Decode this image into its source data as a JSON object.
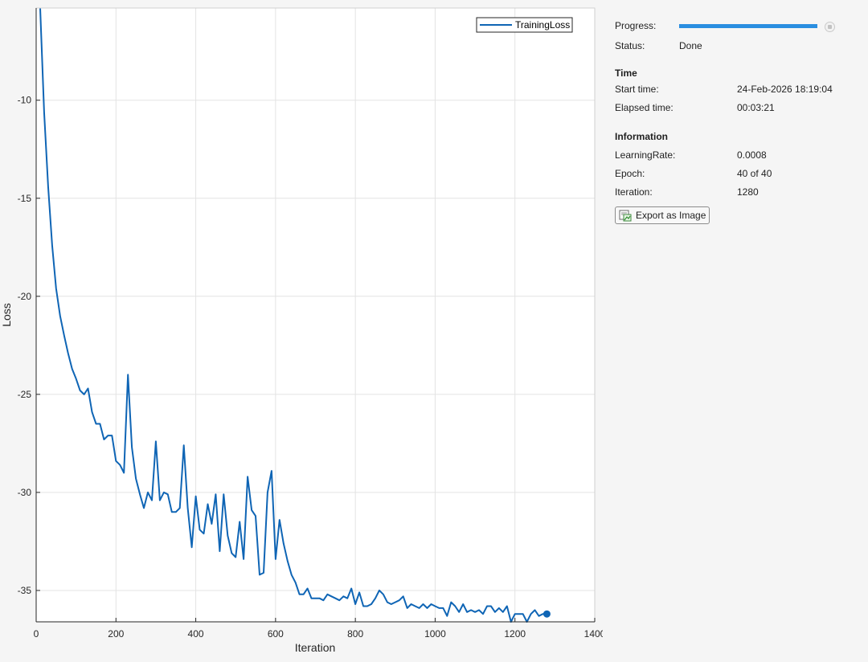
{
  "colors": {
    "accent": "#2a8ee0",
    "line": "#0f65b5",
    "grid": "#e3e3e3"
  },
  "chart_data": {
    "type": "line",
    "xlabel": "Iteration",
    "ylabel": "Loss",
    "xlim": [
      0,
      1400
    ],
    "ylim": [
      -36.6,
      -5.3
    ],
    "xticks": [
      0,
      200,
      400,
      600,
      800,
      1000,
      1200,
      1400
    ],
    "yticks": [
      -10,
      -15,
      -20,
      -25,
      -30,
      -35
    ],
    "grid": true,
    "legend_position": "top-right",
    "series": [
      {
        "name": "TrainingLoss",
        "marker_last": true,
        "x": [
          10,
          20,
          30,
          40,
          50,
          60,
          70,
          80,
          90,
          100,
          110,
          120,
          130,
          140,
          150,
          160,
          170,
          180,
          190,
          200,
          210,
          220,
          230,
          240,
          250,
          260,
          270,
          280,
          290,
          300,
          310,
          320,
          330,
          340,
          350,
          360,
          370,
          380,
          390,
          400,
          410,
          420,
          430,
          440,
          450,
          460,
          470,
          480,
          490,
          500,
          510,
          520,
          530,
          540,
          550,
          560,
          570,
          580,
          590,
          600,
          610,
          620,
          630,
          640,
          650,
          660,
          670,
          680,
          690,
          700,
          710,
          720,
          730,
          740,
          750,
          760,
          770,
          780,
          790,
          800,
          810,
          820,
          830,
          840,
          850,
          860,
          870,
          880,
          890,
          900,
          910,
          920,
          930,
          940,
          950,
          960,
          970,
          980,
          990,
          1000,
          1010,
          1020,
          1030,
          1040,
          1050,
          1060,
          1070,
          1080,
          1090,
          1100,
          1110,
          1120,
          1130,
          1140,
          1150,
          1160,
          1170,
          1180,
          1190,
          1200,
          1210,
          1220,
          1230,
          1240,
          1250,
          1260,
          1270,
          1280
        ],
        "y": [
          -5.3,
          -10.6,
          -14.4,
          -17.4,
          -19.6,
          -21.0,
          -22.0,
          -22.9,
          -23.7,
          -24.2,
          -24.8,
          -25.0,
          -24.7,
          -25.9,
          -26.5,
          -26.5,
          -27.3,
          -27.1,
          -27.1,
          -28.4,
          -28.6,
          -29.0,
          -24.0,
          -27.7,
          -29.3,
          -30.1,
          -30.8,
          -30.0,
          -30.4,
          -27.4,
          -30.4,
          -30.0,
          -30.1,
          -31.0,
          -31.0,
          -30.8,
          -27.6,
          -30.8,
          -32.8,
          -30.2,
          -31.9,
          -32.1,
          -30.6,
          -31.6,
          -30.1,
          -33.0,
          -30.1,
          -32.2,
          -33.1,
          -33.3,
          -31.5,
          -33.4,
          -29.2,
          -30.9,
          -31.2,
          -34.2,
          -34.1,
          -30.0,
          -28.9,
          -33.4,
          -31.4,
          -32.6,
          -33.5,
          -34.2,
          -34.6,
          -35.2,
          -35.2,
          -34.9,
          -35.4,
          -35.4,
          -35.4,
          -35.5,
          -35.2,
          -35.3,
          -35.4,
          -35.5,
          -35.3,
          -35.4,
          -34.9,
          -35.7,
          -35.1,
          -35.8,
          -35.8,
          -35.7,
          -35.4,
          -35.0,
          -35.2,
          -35.6,
          -35.7,
          -35.6,
          -35.5,
          -35.3,
          -35.9,
          -35.7,
          -35.8,
          -35.9,
          -35.7,
          -35.9,
          -35.7,
          -35.8,
          -35.9,
          -35.9,
          -36.3,
          -35.6,
          -35.8,
          -36.1,
          -35.7,
          -36.1,
          -36.0,
          -36.1,
          -36.0,
          -36.2,
          -35.8,
          -35.8,
          -36.1,
          -35.9,
          -36.1,
          -35.8,
          -36.6,
          -36.2,
          -36.2,
          -36.2,
          -36.6,
          -36.2,
          -36.0,
          -36.3,
          -36.2,
          -36.2
        ]
      }
    ]
  },
  "panel": {
    "progress_label": "Progress:",
    "progress_value": 1.0,
    "status_label": "Status:",
    "status_value": "Done",
    "time_title": "Time",
    "start_time_label": "Start time:",
    "start_time_value": "24-Feb-2026 18:19:04",
    "elapsed_label": "Elapsed time:",
    "elapsed_value": "00:03:21",
    "info_title": "Information",
    "lr_label": "LearningRate:",
    "lr_value": "0.0008",
    "epoch_label": "Epoch:",
    "epoch_value": "40 of 40",
    "iter_label": "Iteration:",
    "iter_value": "1280",
    "export_label": "Export as Image",
    "export_icon": "export-image-icon",
    "stop_icon": "stop-icon"
  }
}
